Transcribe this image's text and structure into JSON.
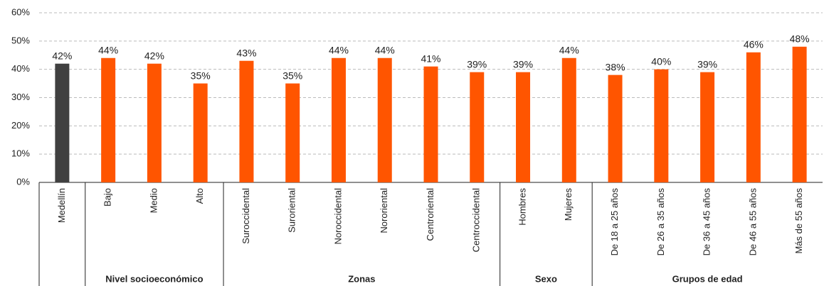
{
  "chart_data": {
    "type": "bar",
    "categories": [
      "Medellín",
      "Bajo",
      "Medio",
      "Alto",
      "Suroccidental",
      "Suroriental",
      "Noroccidental",
      "Nororiental",
      "Centroriental",
      "Centroccidental",
      "Hombres",
      "Mujeres",
      "De 18 a 25 años",
      "De 26 a 35 años",
      "De 36 a 45 años",
      "De 46 a 55 años",
      "Más de 55 años"
    ],
    "values": [
      42,
      44,
      42,
      35,
      43,
      35,
      44,
      44,
      41,
      39,
      39,
      44,
      38,
      40,
      39,
      46,
      48
    ],
    "value_labels": [
      "42%",
      "44%",
      "42%",
      "35%",
      "43%",
      "35%",
      "44%",
      "44%",
      "41%",
      "39%",
      "39%",
      "44%",
      "38%",
      "40%",
      "39%",
      "46%",
      "48%"
    ],
    "colors": [
      "#404040",
      "#ff5500",
      "#ff5500",
      "#ff5500",
      "#ff5500",
      "#ff5500",
      "#ff5500",
      "#ff5500",
      "#ff5500",
      "#ff5500",
      "#ff5500",
      "#ff5500",
      "#ff5500",
      "#ff5500",
      "#ff5500",
      "#ff5500",
      "#ff5500"
    ],
    "groups": [
      {
        "name": null,
        "count": 1
      },
      {
        "name": "Nivel socioeconómico",
        "count": 3
      },
      {
        "name": "Zonas",
        "count": 6
      },
      {
        "name": "Sexo",
        "count": 2
      },
      {
        "name": "Grupos de edad",
        "count": 5
      }
    ],
    "ylim": [
      0,
      60
    ],
    "yticks": [
      {
        "value": 0,
        "label": "0%"
      },
      {
        "value": 10,
        "label": "10%"
      },
      {
        "value": 20,
        "label": "20%"
      },
      {
        "value": 30,
        "label": "30%"
      },
      {
        "value": 40,
        "label": "40%"
      },
      {
        "value": 50,
        "label": "50%"
      },
      {
        "value": 60,
        "label": "60%"
      }
    ],
    "grid": true
  }
}
